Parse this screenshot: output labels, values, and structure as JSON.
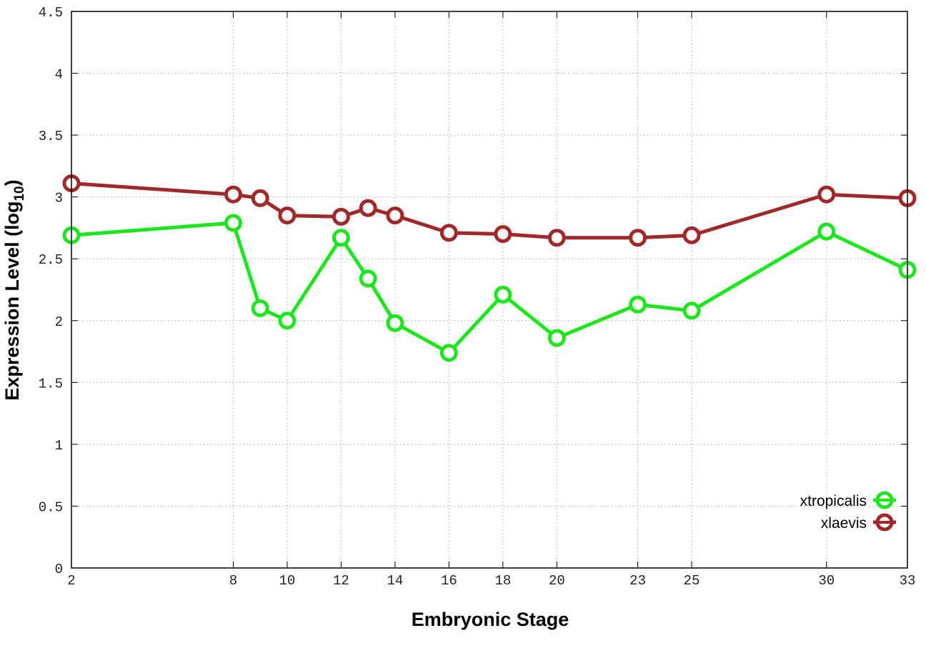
{
  "chart_data": {
    "type": "line",
    "title": "",
    "xlabel": "Embryonic Stage",
    "ylabel": "Expression Level (log",
    "ylabel_sub": "10",
    "ylabel_end": ")",
    "xlim": [
      2,
      33
    ],
    "ylim": [
      0,
      4.5
    ],
    "xticks": [
      2,
      8,
      10,
      12,
      14,
      16,
      18,
      20,
      23,
      25,
      30,
      33
    ],
    "yticks": [
      0,
      0.5,
      1,
      1.5,
      2,
      2.5,
      3,
      3.5,
      4,
      4.5
    ],
    "ytick_labels": [
      "0",
      "0.5",
      "1",
      "1.5",
      "2",
      "2.5",
      "3",
      "3.5",
      "4",
      "4.5"
    ],
    "grid": true,
    "legend_position": "bottom-right",
    "x": [
      2,
      8,
      9,
      10,
      12,
      13,
      14,
      16,
      18,
      20,
      23,
      25,
      30,
      33
    ],
    "series": [
      {
        "name": "xtropicalis",
        "color": "#1ee61e",
        "values": [
          2.69,
          2.79,
          2.1,
          2.0,
          2.67,
          2.34,
          1.98,
          1.74,
          2.21,
          1.86,
          2.13,
          2.08,
          2.72,
          2.41
        ]
      },
      {
        "name": "xlaevis",
        "color": "#a02828",
        "values": [
          3.11,
          3.02,
          2.99,
          2.85,
          2.84,
          2.91,
          2.85,
          2.71,
          2.7,
          2.67,
          2.67,
          2.69,
          3.02,
          2.99
        ]
      }
    ]
  }
}
